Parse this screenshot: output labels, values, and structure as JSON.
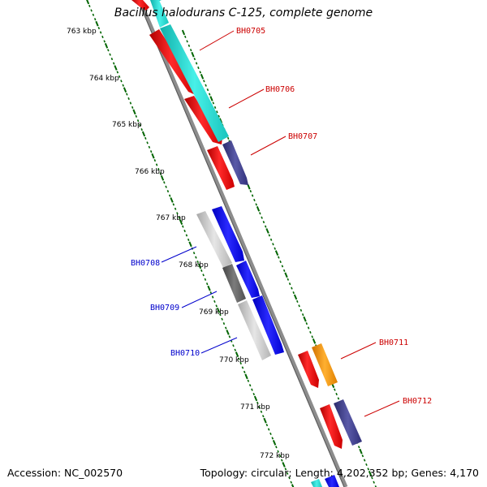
{
  "title": "Bacillus halodurans C-125, complete genome",
  "footer": {
    "accession": "Accession: NC_002570",
    "topology": "Topology: circular; Length: 4,202,352 bp; Genes: 4,170"
  },
  "colors": {
    "backbone": "#8c8c8c",
    "ruler_tick": "#006400",
    "label_red": "#cc0000",
    "label_blue": "#0000cc",
    "cds_red": "#ff0000",
    "cds_cyan": "#20d8d0",
    "cds_blue": "#0000ff",
    "cds_navy": "#3a3a8c",
    "cds_orange": "#ff9a00",
    "cds_light_gray": "#c8c8c8",
    "cds_dark_gray": "#606060"
  },
  "ruler_labels": [
    "763 kbp",
    "764 kbp",
    "765 kbp",
    "766 kbp",
    "767 kbp",
    "768 kbp",
    "769 kbp",
    "770 kbp",
    "771 kbp",
    "772 kbp"
  ],
  "gene_labels": [
    {
      "name": "BH0705",
      "color": "red"
    },
    {
      "name": "BH0706",
      "color": "red"
    },
    {
      "name": "BH0707",
      "color": "red"
    },
    {
      "name": "BH0708",
      "color": "blue"
    },
    {
      "name": "BH0709",
      "color": "blue"
    },
    {
      "name": "BH0710",
      "color": "blue"
    },
    {
      "name": "BH0711",
      "color": "red"
    },
    {
      "name": "BH0712",
      "color": "red"
    }
  ]
}
